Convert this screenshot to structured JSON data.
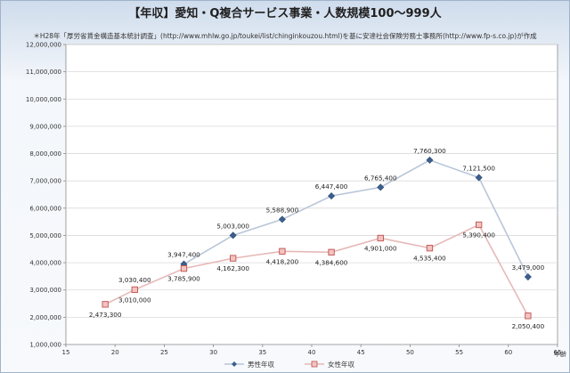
{
  "chart_data": {
    "type": "line",
    "title": "【年収】愛知・Q複合サービス事業・人数規模100～999人",
    "subtitle": "＊H28年「厚労省賃金構造基本統計調査」(http://www.mhlw.go.jp/toukei/list/chinginkouzou.html)を基に安達社会保険労務士事務所(http://www.fp-s.co.jp)が作成",
    "xlabel": "年齢",
    "ylabel": "",
    "xlim": [
      15,
      65
    ],
    "ylim": [
      1000000,
      12000000
    ],
    "x_ticks": [
      "15",
      "20",
      "25",
      "30",
      "35",
      "40",
      "45",
      "50",
      "55",
      "60",
      "65"
    ],
    "y_ticks": [
      "1,000,000",
      "2,000,000",
      "3,000,000",
      "4,000,000",
      "5,000,000",
      "6,000,000",
      "7,000,000",
      "8,000,000",
      "9,000,000",
      "10,000,000",
      "11,000,000",
      "12,000,000"
    ],
    "grid": true,
    "legend": "bottom",
    "series": [
      {
        "name": "男性年収",
        "color": "#3d5f8f",
        "marker": "diamond",
        "line_color": "#b9c6d8",
        "points": [
          {
            "x": 27,
            "y": 3947400,
            "label": "3,947,400"
          },
          {
            "x": 32,
            "y": 5003000,
            "label": "5,003,000"
          },
          {
            "x": 37,
            "y": 5588900,
            "label": "5,588,900"
          },
          {
            "x": 42,
            "y": 6447400,
            "label": "6,447,400"
          },
          {
            "x": 47,
            "y": 6765400,
            "label": "6,765,400"
          },
          {
            "x": 52,
            "y": 7760300,
            "label": "7,760,300"
          },
          {
            "x": 57,
            "y": 7121500,
            "label": "7,121,500"
          },
          {
            "x": 62,
            "y": 3479000,
            "label": "3,479,000"
          }
        ]
      },
      {
        "name": "女性年収",
        "color": "#c0504d",
        "marker": "square",
        "line_color": "#e6b9b8",
        "points": [
          {
            "x": 19,
            "y": 2473300,
            "label": "2,473,300"
          },
          {
            "x": 22,
            "y": 3010000,
            "label": "3,010,000"
          },
          {
            "x": 27,
            "y": 3785900,
            "label": "3,785,900"
          },
          {
            "x": 32,
            "y": 4162300,
            "label": "4,162,300"
          },
          {
            "x": 37,
            "y": 4418200,
            "label": "4,418,200"
          },
          {
            "x": 42,
            "y": 4384600,
            "label": "4,384,600"
          },
          {
            "x": 47,
            "y": 4901000,
            "label": "4,901,000"
          },
          {
            "x": 52,
            "y": 4535400,
            "label": "4,535,400"
          },
          {
            "x": 57,
            "y": 5390400,
            "label": "5,390,400"
          },
          {
            "x": 62,
            "y": 2050400,
            "label": "2,050,400"
          }
        ]
      }
    ],
    "annotations": [
      {
        "text": "3,030,400",
        "near_series": "男性年収",
        "x": 22
      }
    ]
  }
}
